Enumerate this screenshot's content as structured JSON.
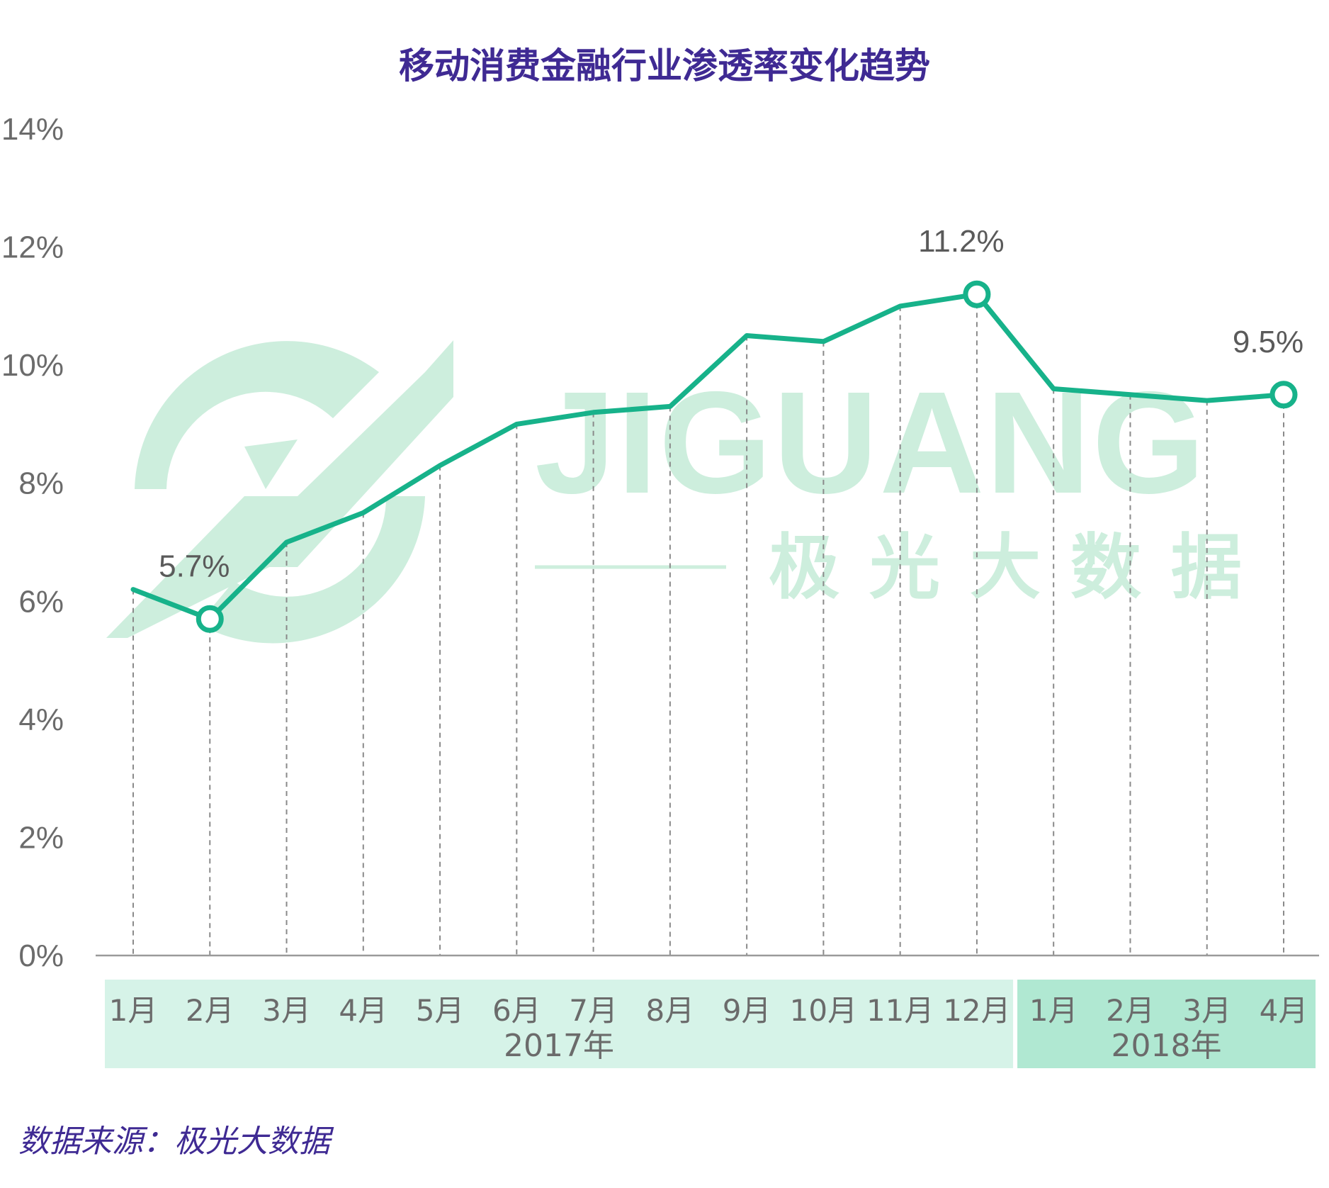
{
  "title": "移动消费金融行业渗透率变化趋势",
  "source": "数据来源：极光大数据",
  "watermark": {
    "logo_text": "JIGUANG",
    "logo_cn": "极光大数据"
  },
  "colors": {
    "line": "#17b28a",
    "title": "#3f2a93",
    "band_2017": "#d6f3e8",
    "band_2018": "#b0e8d2",
    "watermark": "#cdeedd"
  },
  "chart_data": {
    "type": "line",
    "title": "移动消费金融行业渗透率变化趋势",
    "categories": [
      "1月",
      "2月",
      "3月",
      "4月",
      "5月",
      "6月",
      "7月",
      "8月",
      "9月",
      "10月",
      "11月",
      "12月",
      "1月",
      "2月",
      "3月",
      "4月"
    ],
    "groups": [
      {
        "label": "2017年",
        "start": 0,
        "end": 11
      },
      {
        "label": "2018年",
        "start": 12,
        "end": 15
      }
    ],
    "series": [
      {
        "values": [
          6.2,
          5.7,
          7.0,
          7.5,
          8.3,
          9.0,
          9.2,
          9.3,
          10.5,
          10.4,
          11.0,
          11.2,
          9.6,
          9.5,
          9.4,
          9.5
        ]
      }
    ],
    "highlight_points": [
      {
        "index": 1,
        "label": "5.7%"
      },
      {
        "index": 11,
        "label": "11.2%"
      },
      {
        "index": 15,
        "label": "9.5%"
      }
    ],
    "yticks": [
      "0%",
      "2%",
      "4%",
      "6%",
      "8%",
      "10%",
      "12%",
      "14%"
    ],
    "ylim": [
      0,
      14
    ],
    "xlabel": "",
    "ylabel": "",
    "grid": false,
    "drop_lines": true,
    "legend": "none"
  }
}
